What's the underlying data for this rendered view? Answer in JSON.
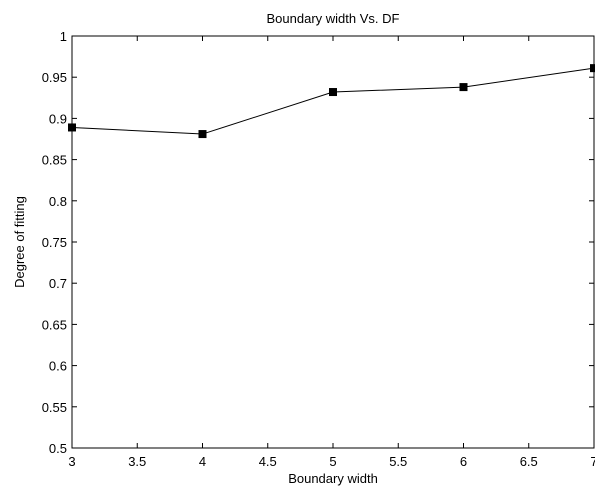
{
  "chart_data": {
    "type": "line",
    "title": "Boundary width Vs. DF",
    "xlabel": "Boundary width",
    "ylabel": "Degree of fitting",
    "xlim": [
      3,
      7
    ],
    "ylim": [
      0.5,
      1
    ],
    "xticks": [
      "3",
      "3.5",
      "4",
      "4.5",
      "5",
      "5.5",
      "6",
      "6.5",
      "7"
    ],
    "yticks": [
      "0.5",
      "0.55",
      "0.6",
      "0.65",
      "0.7",
      "0.75",
      "0.8",
      "0.85",
      "0.9",
      "0.95",
      "1"
    ],
    "grid": false,
    "series": [
      {
        "x": [
          3,
          4,
          5,
          6,
          7
        ],
        "values": [
          0.889,
          0.881,
          0.932,
          0.938,
          0.961
        ],
        "color": "#000000",
        "marker": "square"
      }
    ]
  }
}
